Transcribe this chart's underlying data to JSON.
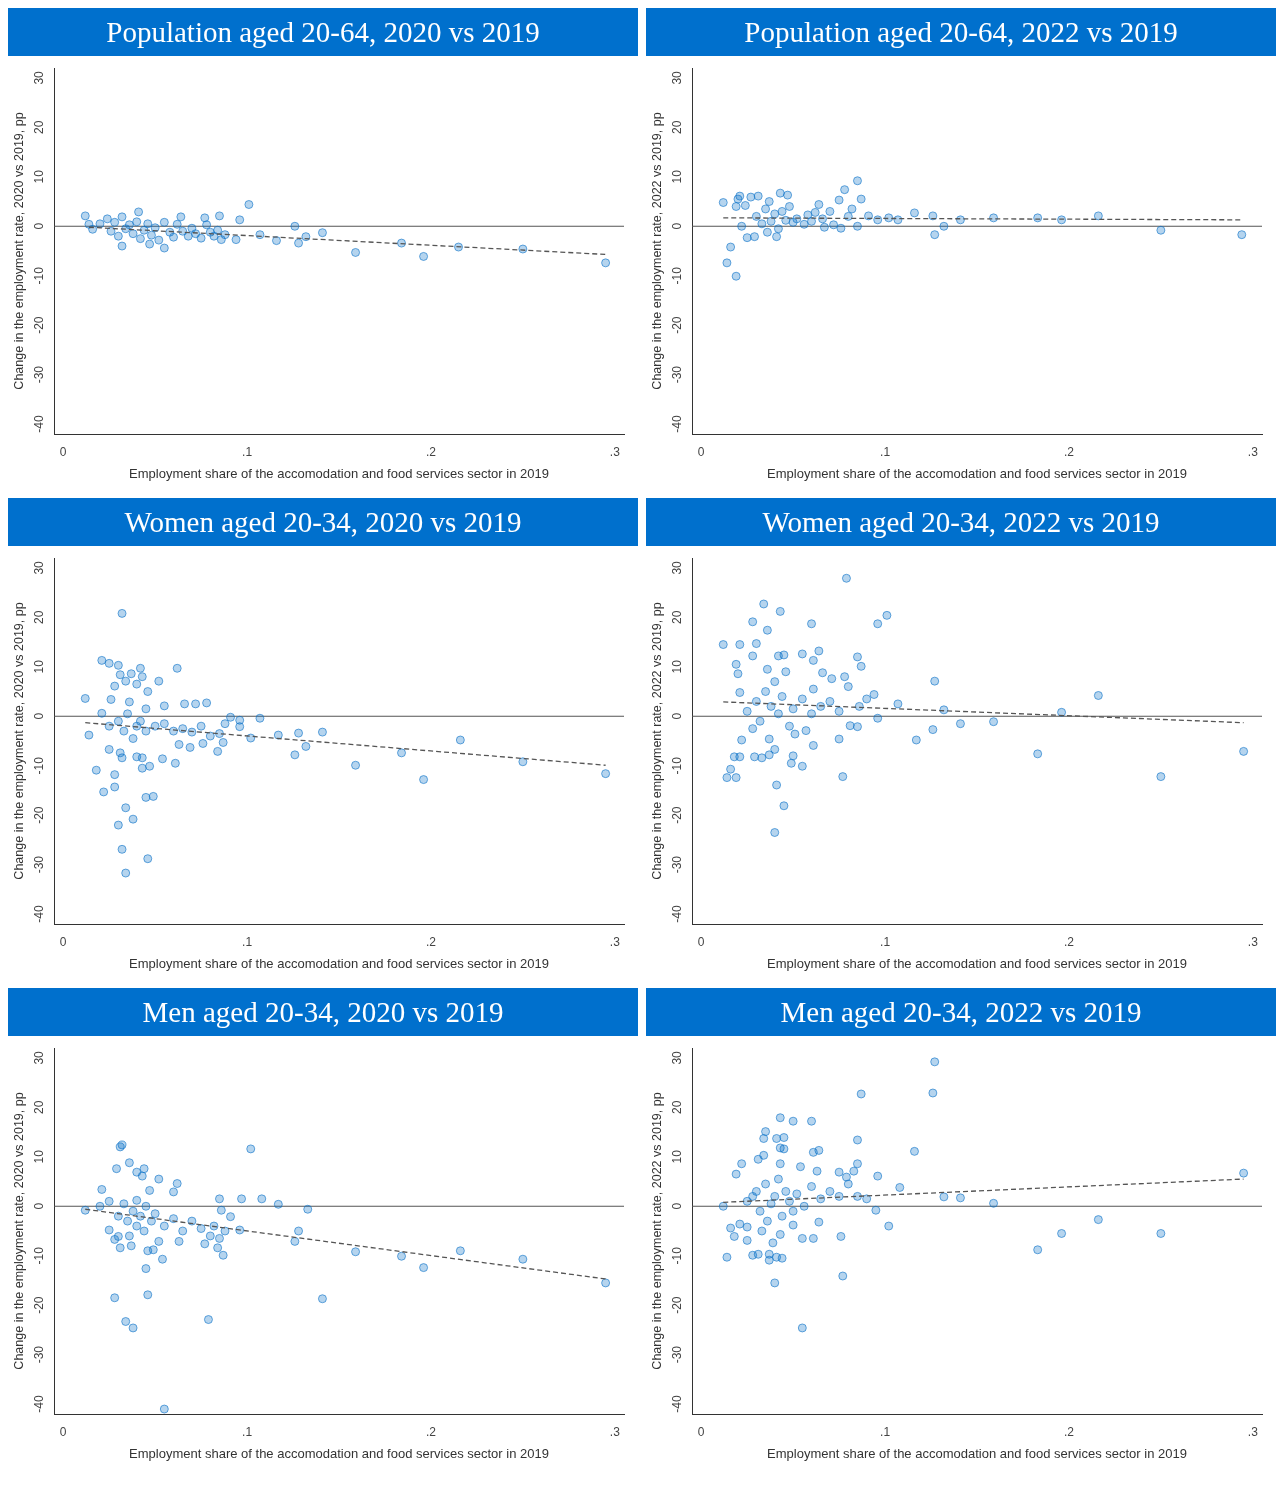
{
  "chart_data": [
    {
      "type": "scatter",
      "title": "Population aged 20-64, 2020 vs 2019",
      "xlabel": "Employment share of the accomodation and food services sector in 2019",
      "ylabel": "Change in the employment rate, 2020 vs 2019, pp",
      "xlim": [
        -0.005,
        0.305
      ],
      "ylim": [
        -42,
        32
      ],
      "xticks": [
        {
          "value": 0,
          "label": "0"
        },
        {
          "value": 0.1,
          "label": ".1"
        },
        {
          "value": 0.2,
          "label": ".2"
        },
        {
          "value": 0.3,
          "label": ".3"
        }
      ],
      "yticks": [
        -40,
        -30,
        -20,
        -10,
        0,
        10,
        20,
        30
      ],
      "grid": false,
      "marker": "circle",
      "ref_lines": [
        {
          "axis": "y",
          "value": 0,
          "color": "#555555"
        }
      ],
      "series": [
        {
          "type": "scatter",
          "color": "#0a72c8",
          "x": [
            0.012,
            0.014,
            0.016,
            0.041,
            0.032,
            0.055,
            0.047,
            0.101,
            0.085,
            0.096,
            0.064,
            0.107,
            0.116,
            0.126,
            0.128,
            0.132,
            0.141,
            0.159,
            0.184,
            0.196,
            0.215,
            0.25,
            0.295,
            0.094,
            0.086,
            0.077,
            0.02,
            0.024,
            0.026,
            0.028,
            0.03,
            0.032,
            0.034,
            0.036,
            0.038,
            0.04,
            0.042,
            0.044,
            0.046,
            0.048,
            0.05,
            0.052,
            0.055,
            0.058,
            0.06,
            0.062,
            0.065,
            0.068,
            0.07,
            0.072,
            0.075,
            0.078,
            0.08,
            0.082,
            0.084,
            0.088
          ],
          "values": [
            2.1,
            0.4,
            -0.6,
            2.9,
            -4,
            -4.4,
            -3.6,
            4.4,
            2.1,
            1.3,
            1.9,
            -1.7,
            -2.9,
            0,
            -3.4,
            -2.1,
            -1.3,
            -5.3,
            -3.4,
            -6.1,
            -4.2,
            -4.6,
            -7.4,
            -2.7,
            -2.7,
            1.7,
            0.5,
            1.5,
            -1,
            0.8,
            -2,
            1.9,
            -0.5,
            0.3,
            -1.5,
            0.9,
            -2.5,
            -0.8,
            0.5,
            -1.8,
            -0.3,
            -2.8,
            0.8,
            -1.2,
            -2.2,
            0.4,
            -1,
            -2,
            -0.4,
            -1.5,
            -2.4,
            0.3,
            -1.2,
            -2,
            -0.8,
            -1.7
          ]
        },
        {
          "type": "line",
          "color": "#555555",
          "line_style": "dashed",
          "x": [
            0.014,
            0.295
          ],
          "values": [
            -0.2,
            -5.7
          ],
          "marker": "none"
        }
      ]
    },
    {
      "type": "scatter",
      "title": "Population aged 20-64, 2022 vs 2019",
      "xlabel": "Employment share of the accomodation and food services sector in 2019",
      "ylabel": "Change in the employment rate, 2022 vs 2019, pp",
      "xlim": [
        -0.005,
        0.305
      ],
      "ylim": [
        -42,
        32
      ],
      "xticks": [
        {
          "value": 0,
          "label": "0"
        },
        {
          "value": 0.1,
          "label": ".1"
        },
        {
          "value": 0.2,
          "label": ".2"
        },
        {
          "value": 0.3,
          "label": ".3"
        }
      ],
      "yticks": [
        -40,
        -30,
        -20,
        -10,
        0,
        10,
        20,
        30
      ],
      "grid": false,
      "marker": "circle",
      "ref_lines": [
        {
          "axis": "y",
          "value": 0,
          "color": "#555555"
        }
      ],
      "series": [
        {
          "type": "scatter",
          "color": "#0a72c8",
          "x": [
            0.012,
            0.014,
            0.016,
            0.019,
            0.021,
            0.02,
            0.019,
            0.025,
            0.022,
            0.027,
            0.031,
            0.043,
            0.047,
            0.037,
            0.041,
            0.029,
            0.078,
            0.085,
            0.087,
            0.075,
            0.064,
            0.052,
            0.056,
            0.067,
            0.076,
            0.085,
            0.091,
            0.096,
            0.102,
            0.107,
            0.116,
            0.126,
            0.127,
            0.132,
            0.141,
            0.159,
            0.183,
            0.196,
            0.216,
            0.25,
            0.294,
            0.03,
            0.033,
            0.035,
            0.038,
            0.04,
            0.042,
            0.044,
            0.046,
            0.048,
            0.05,
            0.058,
            0.06,
            0.062,
            0.066,
            0.07,
            0.072,
            0.08,
            0.082,
            0.036,
            0.024
          ],
          "values": [
            4.8,
            -7.4,
            -4.2,
            -10.1,
            6.1,
            5.5,
            4,
            -2.3,
            0,
            5.9,
            6.1,
            6.7,
            6.3,
            5,
            -2.1,
            -2.1,
            7.4,
            9.2,
            5.5,
            5.3,
            4.4,
            1.5,
            0.4,
            -0.2,
            -0.4,
            0,
            2.1,
            1.3,
            1.7,
            1.3,
            2.7,
            2.1,
            -1.7,
            0,
            1.3,
            1.7,
            1.7,
            1.3,
            2.1,
            -0.8,
            -1.7,
            2,
            0.5,
            3.5,
            1,
            2.5,
            -0.5,
            3,
            1.2,
            4,
            0.8,
            2.3,
            1,
            2.8,
            1.5,
            3,
            0.3,
            2,
            3.5,
            -1.2,
            4.2
          ]
        },
        {
          "type": "line",
          "color": "#555555",
          "line_style": "dashed",
          "x": [
            0.012,
            0.294
          ],
          "values": [
            1.7,
            1.3
          ],
          "marker": "none"
        }
      ]
    },
    {
      "type": "scatter",
      "title": "Women aged 20-34, 2020 vs 2019",
      "xlabel": "Employment share of the accomodation and food services sector in 2019",
      "ylabel": "Change in the employment rate, 2020 vs 2019, pp",
      "xlim": [
        -0.005,
        0.305
      ],
      "ylim": [
        -42,
        32
      ],
      "xticks": [
        {
          "value": 0,
          "label": "0"
        },
        {
          "value": 0.1,
          "label": ".1"
        },
        {
          "value": 0.2,
          "label": ".2"
        },
        {
          "value": 0.3,
          "label": ".3"
        }
      ],
      "yticks": [
        -40,
        -30,
        -20,
        -10,
        0,
        10,
        20,
        30
      ],
      "grid": false,
      "marker": "circle",
      "ref_lines": [
        {
          "axis": "y",
          "value": 0,
          "color": "#555555"
        }
      ],
      "series": [
        {
          "type": "scatter",
          "color": "#0a72c8",
          "x": [
            0.032,
            0.021,
            0.025,
            0.03,
            0.042,
            0.062,
            0.031,
            0.037,
            0.043,
            0.052,
            0.034,
            0.04,
            0.028,
            0.046,
            0.012,
            0.026,
            0.036,
            0.066,
            0.072,
            0.078,
            0.055,
            0.021,
            0.091,
            0.107,
            0.096,
            0.096,
            0.014,
            0.117,
            0.128,
            0.141,
            0.126,
            0.132,
            0.102,
            0.184,
            0.159,
            0.196,
            0.216,
            0.25,
            0.295,
            0.025,
            0.031,
            0.032,
            0.04,
            0.043,
            0.054,
            0.061,
            0.043,
            0.047,
            0.018,
            0.028,
            0.028,
            0.022,
            0.045,
            0.049,
            0.034,
            0.038,
            0.03,
            0.032,
            0.046,
            0.034,
            0.063,
            0.069,
            0.076,
            0.084,
            0.087,
            0.03,
            0.035,
            0.04,
            0.042,
            0.045,
            0.05,
            0.055,
            0.06,
            0.065,
            0.07,
            0.075,
            0.08,
            0.085,
            0.088,
            0.045,
            0.038,
            0.033,
            0.025
          ],
          "values": [
            20.8,
            11.3,
            10.7,
            10.3,
            9.7,
            9.7,
            8.4,
            8.6,
            8,
            7.1,
            7.1,
            6.5,
            6.1,
            5,
            3.6,
            3.4,
            2.9,
            2.5,
            2.5,
            2.7,
            2.1,
            0.6,
            -0.2,
            -0.4,
            -0.8,
            -2.1,
            -3.8,
            -3.8,
            -3.4,
            -3.2,
            -7.8,
            -6.1,
            -4.4,
            -7.4,
            -9.9,
            -12.8,
            -4.8,
            -9.2,
            -11.6,
            -6.7,
            -7.4,
            -8.4,
            -8.2,
            -8.4,
            -8.6,
            -9.5,
            -10.5,
            -10.1,
            -10.9,
            -11.8,
            -14.3,
            -15.3,
            -16.4,
            -16.2,
            -18.5,
            -20.8,
            -22,
            -26.9,
            -28.8,
            -31.7,
            -5.7,
            -6.3,
            -5.5,
            -7.1,
            -5.3,
            -1,
            0.5,
            -2,
            -1,
            -3,
            -2,
            -1.5,
            -3,
            -2.5,
            -3.2,
            -2,
            -4,
            -3.5,
            -1.5,
            1.5,
            -4.5,
            -3,
            -2
          ]
        },
        {
          "type": "line",
          "color": "#555555",
          "line_style": "dashed",
          "x": [
            0.012,
            0.295
          ],
          "values": [
            -1.3,
            -9.9
          ],
          "marker": "none"
        }
      ]
    },
    {
      "type": "scatter",
      "title": "Women aged 20-34, 2022 vs 2019",
      "xlabel": "Employment share of the accomodation and food services sector in 2019",
      "ylabel": "Change in the employment rate, 2022 vs 2019, pp",
      "xlim": [
        -0.005,
        0.305
      ],
      "ylim": [
        -42,
        32
      ],
      "xticks": [
        {
          "value": 0,
          "label": "0"
        },
        {
          "value": 0.1,
          "label": ".1"
        },
        {
          "value": 0.2,
          "label": ".2"
        },
        {
          "value": 0.3,
          "label": ".3"
        }
      ],
      "yticks": [
        -40,
        -30,
        -20,
        -10,
        0,
        10,
        20,
        30
      ],
      "grid": false,
      "marker": "circle",
      "ref_lines": [
        {
          "axis": "y",
          "value": 0,
          "color": "#555555"
        }
      ],
      "series": [
        {
          "type": "scatter",
          "color": "#0a72c8",
          "x": [
            0.079,
            0.034,
            0.043,
            0.028,
            0.036,
            0.06,
            0.101,
            0.096,
            0.012,
            0.021,
            0.03,
            0.028,
            0.042,
            0.045,
            0.055,
            0.064,
            0.061,
            0.085,
            0.087,
            0.019,
            0.02,
            0.066,
            0.071,
            0.078,
            0.127,
            0.021,
            0.061,
            0.094,
            0.107,
            0.132,
            0.196,
            0.216,
            0.141,
            0.159,
            0.126,
            0.117,
            0.183,
            0.25,
            0.295,
            0.096,
            0.075,
            0.077,
            0.061,
            0.055,
            0.049,
            0.05,
            0.041,
            0.045,
            0.04,
            0.014,
            0.019,
            0.016,
            0.018,
            0.021,
            0.029,
            0.033,
            0.037,
            0.04,
            0.022,
            0.037,
            0.051,
            0.057,
            0.081,
            0.085,
            0.025,
            0.03,
            0.032,
            0.035,
            0.038,
            0.04,
            0.042,
            0.044,
            0.046,
            0.048,
            0.05,
            0.055,
            0.06,
            0.065,
            0.07,
            0.075,
            0.08,
            0.086,
            0.09,
            0.036,
            0.028
          ],
          "values": [
            27.9,
            22.7,
            21.2,
            19.1,
            17.4,
            18.7,
            20.4,
            18.7,
            14.5,
            14.5,
            14.7,
            12.2,
            12.2,
            12.4,
            12.6,
            13.2,
            11.3,
            12,
            10.1,
            10.5,
            8.6,
            8.8,
            7.6,
            8,
            7.1,
            4.8,
            5.5,
            4.4,
            2.5,
            1.3,
            0.8,
            4.2,
            -1.5,
            -1.1,
            -2.7,
            -4.8,
            -7.6,
            -12.2,
            -7.1,
            -0.4,
            -4.6,
            -12.2,
            -5.9,
            -10.1,
            -9.5,
            -8,
            -13.9,
            -18.1,
            -23.5,
            -12.4,
            -12.4,
            -10.7,
            -8.2,
            -8.2,
            -8.2,
            -8.4,
            -7.8,
            -6.7,
            -4.8,
            -4.6,
            -3.6,
            -2.9,
            -1.9,
            -2.1,
            1,
            3,
            -1,
            5,
            2,
            7,
            0.5,
            4,
            9,
            -2,
            1.5,
            3.5,
            0.5,
            2,
            3,
            1,
            6,
            2,
            3.5,
            9.5,
            -2.5
          ]
        },
        {
          "type": "line",
          "color": "#555555",
          "line_style": "dashed",
          "x": [
            0.012,
            0.295
          ],
          "values": [
            2.9,
            -1.3
          ],
          "marker": "none"
        }
      ]
    },
    {
      "type": "scatter",
      "title": "Men aged 20-34, 2020 vs 2019",
      "xlabel": "Employment share of the accomodation and food services sector in 2019",
      "ylabel": "Change in the employment rate, 2020 vs 2019, pp",
      "xlim": [
        -0.005,
        0.305
      ],
      "ylim": [
        -42,
        32
      ],
      "xticks": [
        {
          "value": 0,
          "label": "0"
        },
        {
          "value": 0.1,
          "label": ".1"
        },
        {
          "value": 0.2,
          "label": ".2"
        },
        {
          "value": 0.3,
          "label": ".3"
        }
      ],
      "yticks": [
        -40,
        -30,
        -20,
        -10,
        0,
        10,
        20,
        30
      ],
      "grid": false,
      "marker": "circle",
      "ref_lines": [
        {
          "axis": "y",
          "value": 0,
          "color": "#555555"
        }
      ],
      "series": [
        {
          "type": "scatter",
          "color": "#0a72c8",
          "x": [
            0.032,
            0.031,
            0.102,
            0.036,
            0.029,
            0.044,
            0.04,
            0.043,
            0.052,
            0.062,
            0.021,
            0.047,
            0.06,
            0.085,
            0.097,
            0.108,
            0.117,
            0.133,
            0.012,
            0.128,
            0.126,
            0.159,
            0.184,
            0.196,
            0.216,
            0.25,
            0.295,
            0.141,
            0.079,
            0.055,
            0.028,
            0.046,
            0.034,
            0.038,
            0.045,
            0.054,
            0.046,
            0.049,
            0.031,
            0.037,
            0.03,
            0.028,
            0.025,
            0.063,
            0.077,
            0.084,
            0.087,
            0.085,
            0.096,
            0.091,
            0.086,
            0.052,
            0.02,
            0.025,
            0.03,
            0.033,
            0.035,
            0.038,
            0.04,
            0.042,
            0.044,
            0.045,
            0.048,
            0.05,
            0.055,
            0.06,
            0.065,
            0.07,
            0.075,
            0.08,
            0.082,
            0.088,
            0.04,
            0.036
          ],
          "values": [
            12.4,
            12,
            11.6,
            8.8,
            7.6,
            7.6,
            6.9,
            6.1,
            5.5,
            4.6,
            3.4,
            3.2,
            2.9,
            1.5,
            1.5,
            1.5,
            0.4,
            -0.6,
            -0.8,
            -5,
            -7.1,
            -9.2,
            -10.1,
            -12.4,
            -9,
            -10.7,
            -15.5,
            -18.7,
            -22.9,
            -41,
            -18.5,
            -17.9,
            -23.3,
            -24.6,
            -12.6,
            -10.7,
            -9,
            -8.8,
            -8.4,
            -8,
            -6.1,
            -6.7,
            -4.8,
            -7.1,
            -7.6,
            -8.4,
            -9.9,
            -6.5,
            -4.8,
            -2.1,
            -0.8,
            -7.1,
            0,
            1,
            -2,
            0.5,
            -3,
            -1,
            -4,
            -2,
            -5,
            0,
            -3,
            -1.5,
            -4,
            -2.5,
            -5,
            -3,
            -4.5,
            -6,
            -4,
            -5,
            1.2,
            -6
          ]
        },
        {
          "type": "line",
          "color": "#555555",
          "line_style": "dashed",
          "x": [
            0.012,
            0.295
          ],
          "values": [
            -0.6,
            -14.7
          ],
          "marker": "none"
        }
      ]
    },
    {
      "type": "scatter",
      "title": "Men aged 20-34, 2022 vs 2019",
      "xlabel": "Employment share of the accomodation and food services sector in 2019",
      "ylabel": "Change in the employment rate, 2022 vs 2019, pp",
      "xlim": [
        -0.005,
        0.305
      ],
      "ylim": [
        -42,
        32
      ],
      "xticks": [
        {
          "value": 0,
          "label": "0"
        },
        {
          "value": 0.1,
          "label": ".1"
        },
        {
          "value": 0.2,
          "label": ".2"
        },
        {
          "value": 0.3,
          "label": ".3"
        }
      ],
      "yticks": [
        -40,
        -30,
        -20,
        -10,
        0,
        10,
        20,
        30
      ],
      "grid": false,
      "marker": "circle",
      "ref_lines": [
        {
          "axis": "y",
          "value": 0,
          "color": "#555555"
        }
      ],
      "series": [
        {
          "type": "scatter",
          "color": "#0a72c8",
          "x": [
            0.127,
            0.126,
            0.087,
            0.043,
            0.05,
            0.06,
            0.035,
            0.034,
            0.041,
            0.045,
            0.043,
            0.045,
            0.085,
            0.116,
            0.061,
            0.064,
            0.034,
            0.031,
            0.022,
            0.043,
            0.054,
            0.085,
            0.019,
            0.063,
            0.075,
            0.083,
            0.079,
            0.096,
            0.295,
            0.108,
            0.132,
            0.141,
            0.159,
            0.012,
            0.095,
            0.102,
            0.216,
            0.196,
            0.25,
            0.183,
            0.076,
            0.077,
            0.055,
            0.061,
            0.064,
            0.04,
            0.055,
            0.014,
            0.028,
            0.031,
            0.037,
            0.037,
            0.041,
            0.044,
            0.016,
            0.018,
            0.025,
            0.039,
            0.043,
            0.021,
            0.025,
            0.033,
            0.05,
            0.025,
            0.03,
            0.032,
            0.035,
            0.038,
            0.04,
            0.042,
            0.044,
            0.046,
            0.048,
            0.05,
            0.052,
            0.056,
            0.06,
            0.065,
            0.07,
            0.075,
            0.08,
            0.085,
            0.09,
            0.036,
            0.028
          ],
          "values": [
            29.2,
            22.9,
            22.7,
            17.9,
            17.2,
            17.2,
            15.1,
            13.7,
            13.7,
            13.9,
            11.8,
            11.6,
            13.4,
            11.1,
            10.9,
            11.3,
            10.3,
            9.5,
            8.6,
            8.6,
            8,
            8.6,
            6.5,
            7.1,
            6.9,
            7.1,
            5.9,
            6.1,
            6.7,
            3.8,
            1.9,
            1.7,
            0.6,
            0,
            -0.8,
            -4,
            -2.7,
            -5.5,
            -5.5,
            -8.8,
            -6.1,
            -14.1,
            -6.5,
            -6.5,
            -3.2,
            -15.5,
            -24.6,
            -10.3,
            -9.9,
            -9.7,
            -9.7,
            -10.9,
            -10.3,
            -10.5,
            -4.4,
            -6.1,
            -6.9,
            -7.4,
            -5.7,
            -3.6,
            -4.2,
            -5,
            -3.8,
            1,
            3,
            -1,
            4.5,
            0.5,
            2,
            5.5,
            -2,
            3,
            1,
            -1,
            2.5,
            0,
            4,
            1.5,
            3,
            2,
            4.5,
            2,
            1.5,
            -3,
            2
          ]
        },
        {
          "type": "line",
          "color": "#555555",
          "line_style": "dashed",
          "x": [
            0.012,
            0.295
          ],
          "values": [
            0.8,
            5.5
          ],
          "marker": "none"
        }
      ]
    }
  ]
}
